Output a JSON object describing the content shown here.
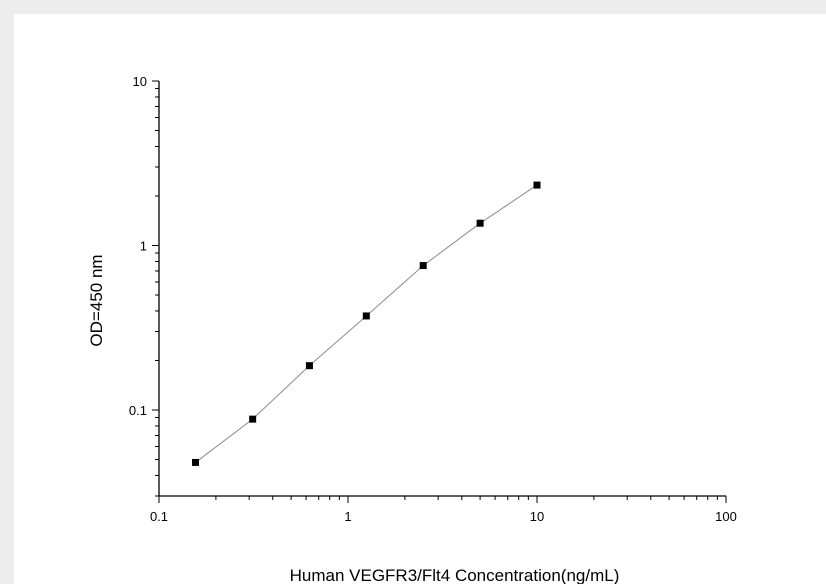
{
  "chart_data": {
    "type": "line",
    "xlabel": "Human VEGFR3/Flt4 Concentration(ng/mL)",
    "ylabel": "OD=450 nm",
    "x_scale": "log",
    "y_scale": "log",
    "xlim": [
      0.1,
      100
    ],
    "ylim": [
      0.03,
      10
    ],
    "x_ticks": [
      {
        "value": 0.1,
        "label": "0.1"
      },
      {
        "value": 1,
        "label": "1"
      },
      {
        "value": 10,
        "label": "10"
      },
      {
        "value": 100,
        "label": "100"
      }
    ],
    "y_ticks": [
      {
        "value": 0.1,
        "label": "0.1"
      },
      {
        "value": 1,
        "label": "1"
      },
      {
        "value": 10,
        "label": "10"
      }
    ],
    "grid": false,
    "series": [
      {
        "x": [
          0.156,
          0.313,
          0.625,
          1.25,
          2.5,
          5,
          10
        ],
        "y": [
          0.048,
          0.088,
          0.186,
          0.373,
          0.755,
          1.366,
          2.33
        ],
        "marker": "square",
        "color": "#000000",
        "line_color": "#8c8c8c"
      }
    ]
  }
}
